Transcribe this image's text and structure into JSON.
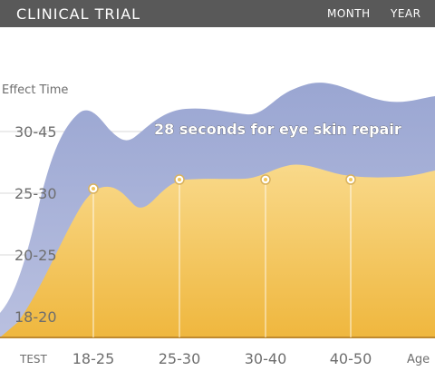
{
  "header": {
    "title": "CLINICAL TRIAL",
    "tabs": [
      "MONTH",
      "YEAR"
    ]
  },
  "colors": {
    "header_bg": "#595959",
    "blue_area": "#a5b0d6",
    "yellow_area": "#f3c65a",
    "baseline": "#c08a2e",
    "annotation_text": "#ffffff"
  },
  "chart_data": {
    "type": "area",
    "ylabel": "Effect Time",
    "xlabel": "Age",
    "x_first_label": "TEST",
    "categories": [
      "18-25",
      "25-30",
      "30-40",
      "40-50"
    ],
    "y_categories": [
      "18-20",
      "20-25",
      "25-30",
      "30-45"
    ],
    "annotation": "28 seconds for eye skin repair",
    "highlighted_points": [
      {
        "x": "18-25",
        "y": "25-30"
      },
      {
        "x": "25-30",
        "y": "25-30"
      },
      {
        "x": "30-40",
        "y": "25-30"
      },
      {
        "x": "40-50",
        "y": "25-30"
      }
    ],
    "grid": true
  }
}
